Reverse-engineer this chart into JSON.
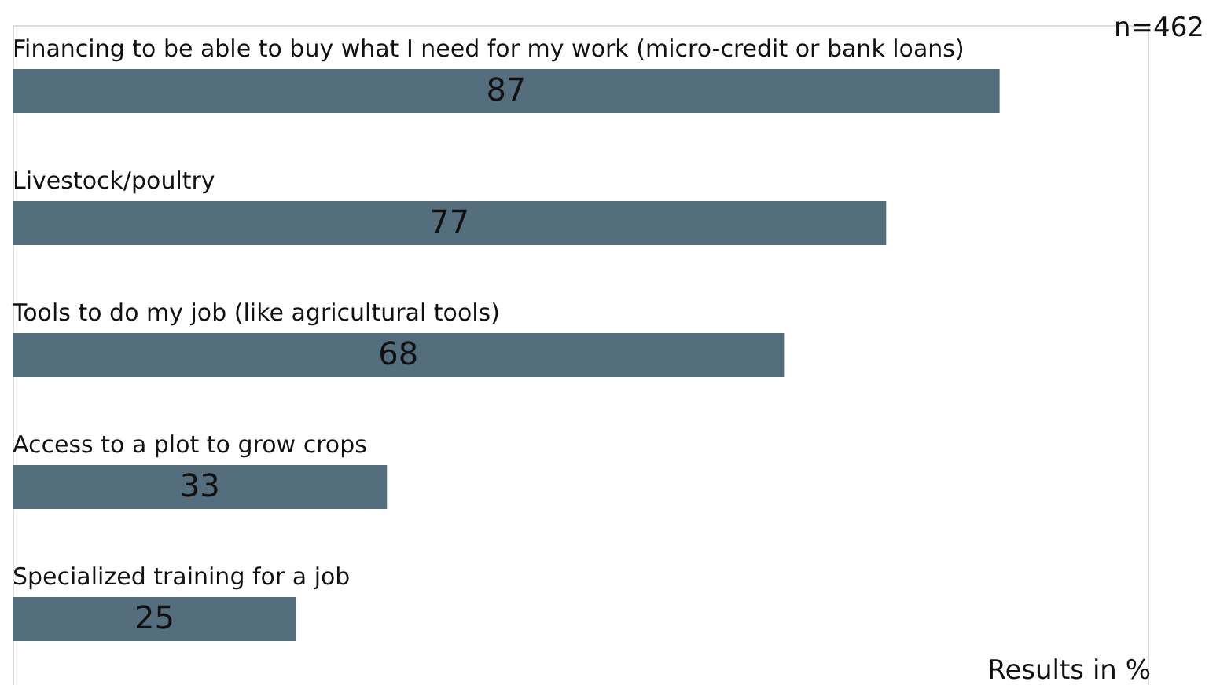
{
  "chart_data": {
    "type": "bar",
    "orientation": "horizontal",
    "data_labels": true,
    "categories": [
      "Financing to be able to buy what I need for my work (micro-credit or bank loans)",
      "Livestock/poultry",
      "Tools to do my job (like agricultural tools)",
      "Access to a plot to grow crops",
      "Specialized training for a job"
    ],
    "values": [
      87,
      77,
      68,
      33,
      25
    ],
    "color": "#546e7e",
    "annotations": [
      "n=462",
      "Results in %"
    ]
  }
}
